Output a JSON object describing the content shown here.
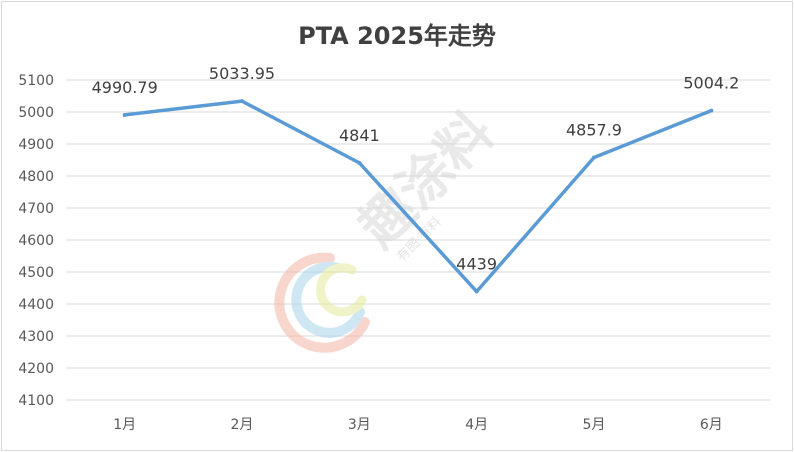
{
  "chart_data": {
    "type": "line",
    "title": "PTA 2025年走势",
    "categories": [
      "1月",
      "2月",
      "3月",
      "4月",
      "5月",
      "6月"
    ],
    "series": [
      {
        "values": [
          4990.79,
          5033.95,
          4841,
          4439,
          4857.9,
          5004.2
        ]
      }
    ],
    "data_labels": [
      "4990.79",
      "5033.95",
      "4841",
      "4439",
      "4857.9",
      "5004.2"
    ],
    "ylim": [
      4100,
      5100
    ],
    "yticks": [
      4100,
      4200,
      4300,
      4400,
      4500,
      4600,
      4700,
      4800,
      4900,
      5000,
      5100
    ],
    "xlabel": "",
    "ylabel": "",
    "grid": true,
    "legend": "none",
    "line_color": "#5b9bd5"
  },
  "watermark": {
    "text": "趣涂料",
    "sub": "有图 有料"
  }
}
